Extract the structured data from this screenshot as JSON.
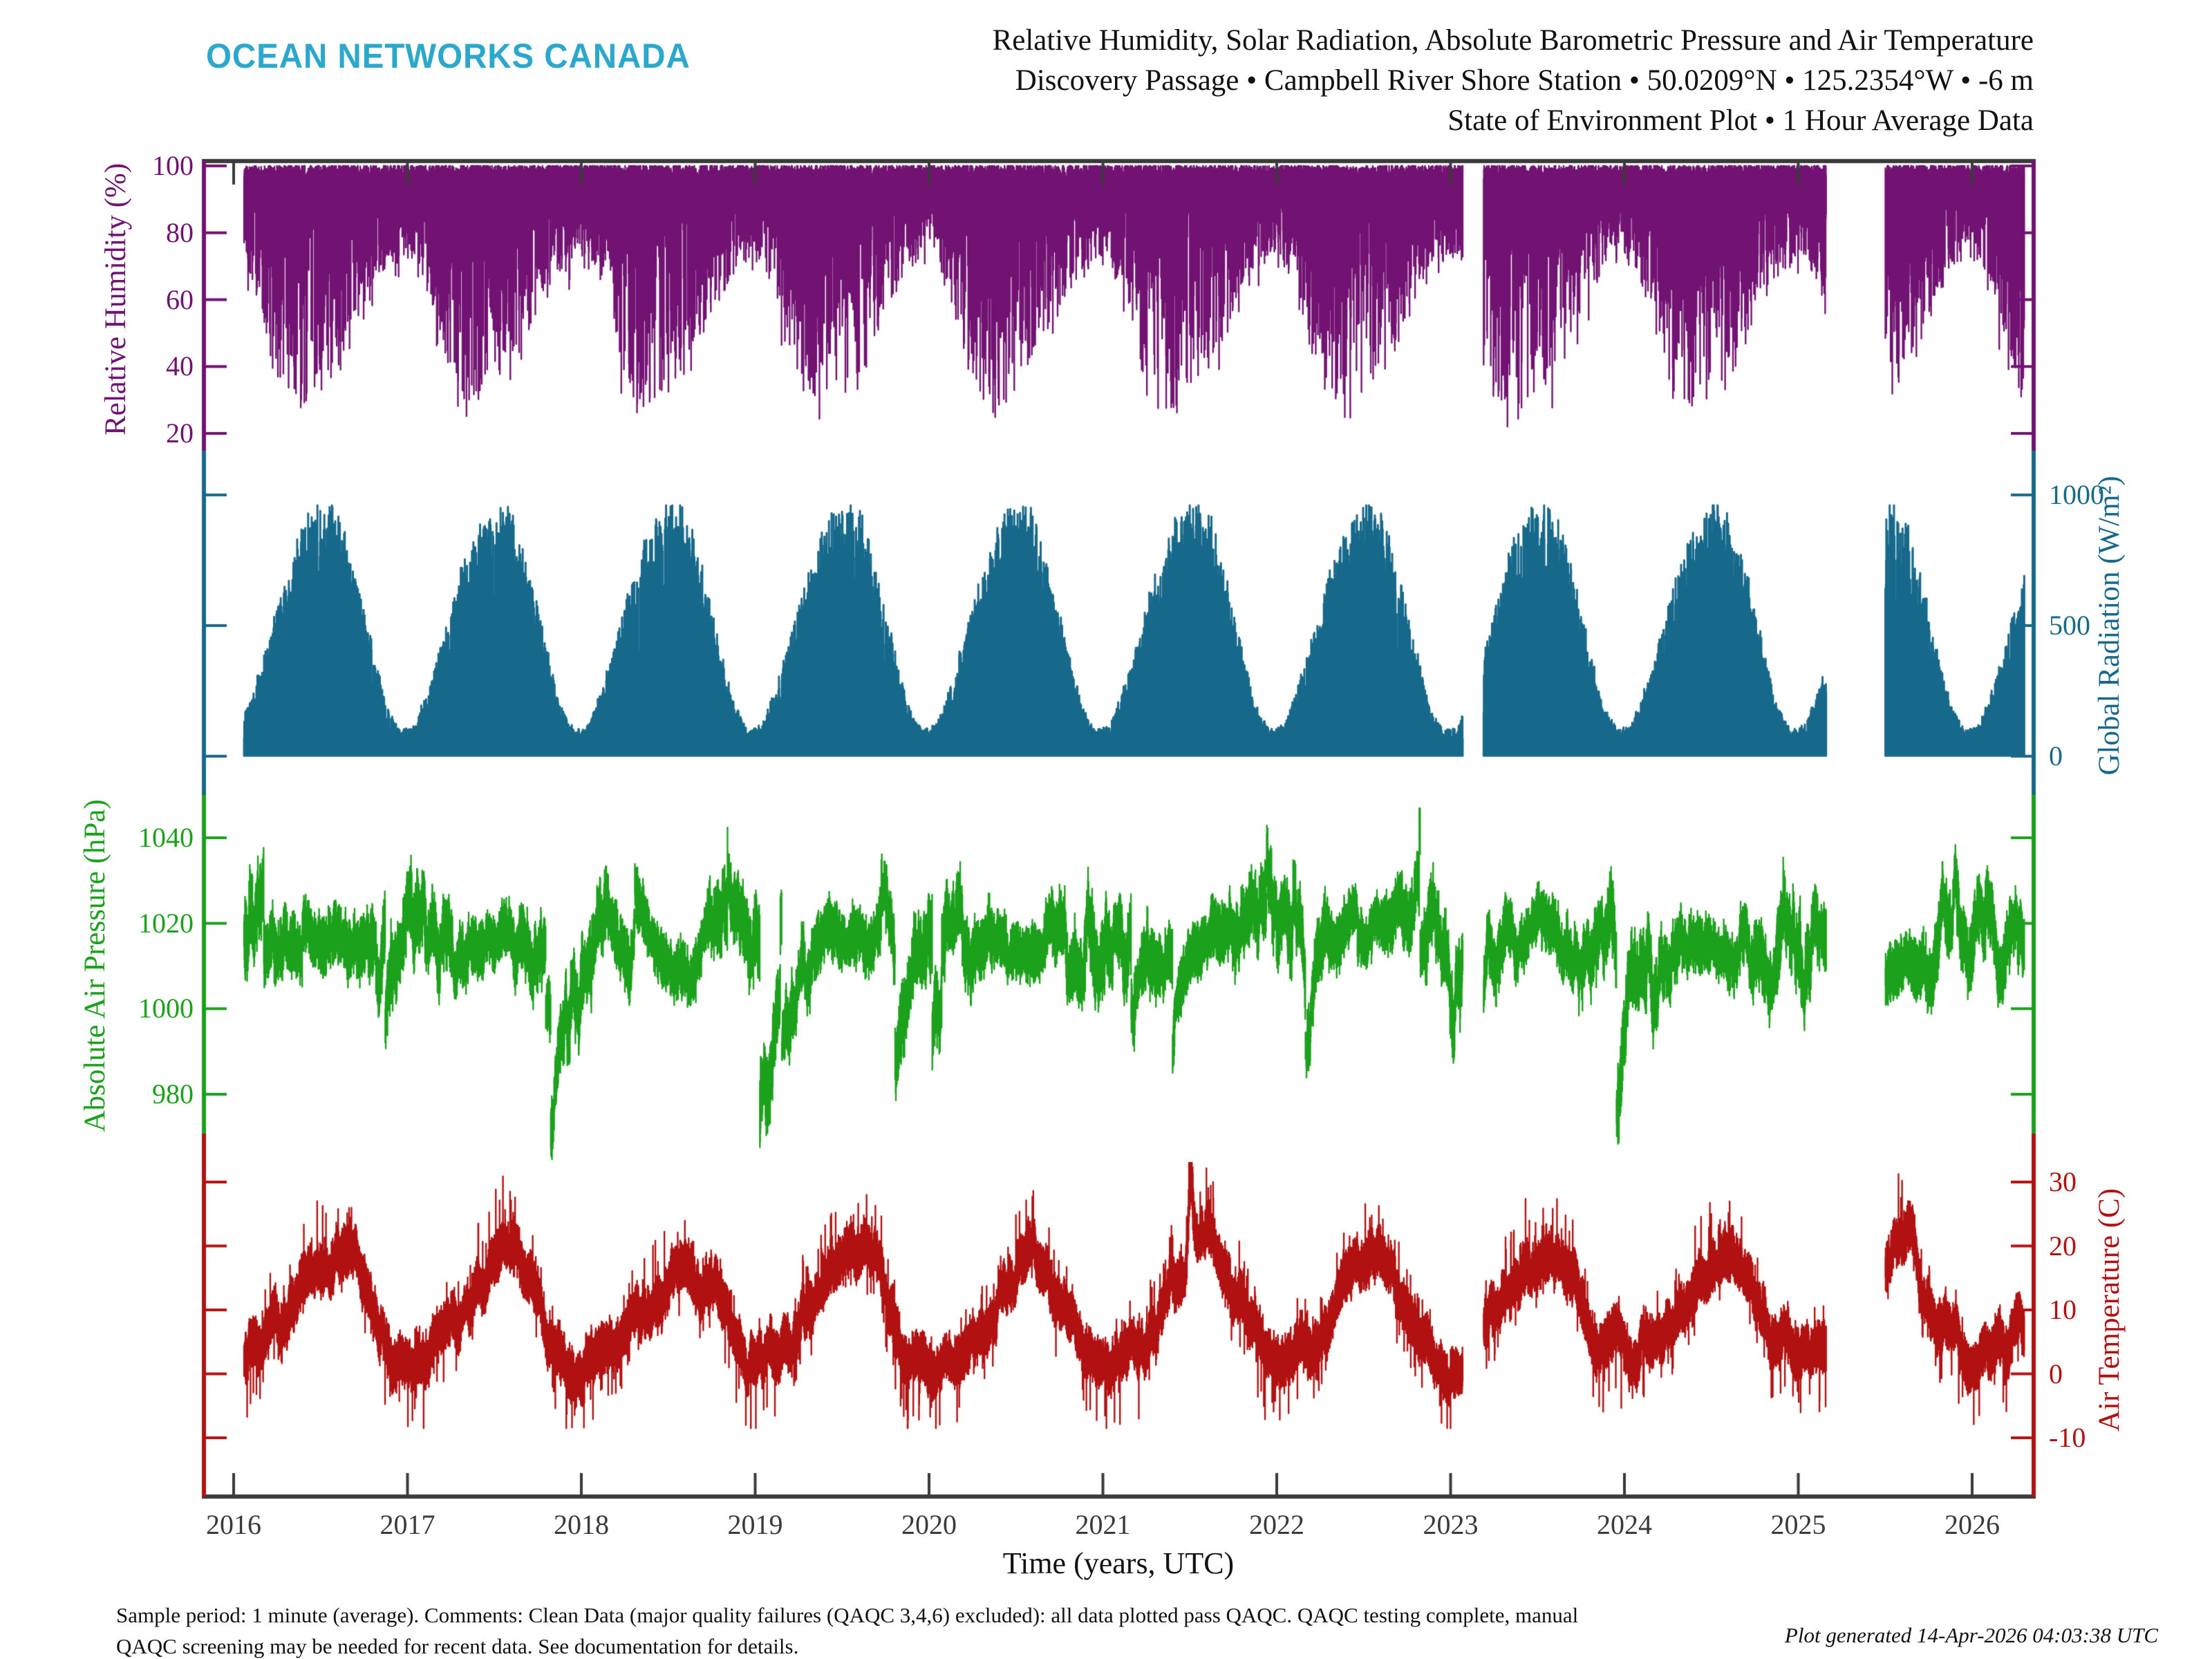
{
  "header": {
    "logo": "OCEAN NETWORKS CANADA",
    "title_lines": [
      "Relative Humidity, Solar Radiation, Absolute Barometric Pressure and Air Temperature",
      "Discovery Passage • Campbell River Shore Station • 50.0209°N • 125.2354°W • -6 m",
      "State of Environment Plot • 1 Hour Average Data"
    ]
  },
  "footer": {
    "line1": "Sample period: 1 minute (average). Comments: Clean Data (major quality failures (QAQC 3,4,6) excluded): all data plotted pass QAQC. QAQC testing complete, manual",
    "line2": "QAQC screening may be needed for recent data. See documentation for details.",
    "generated": "Plot generated 14-Apr-2026 04:03:38 UTC"
  },
  "colors": {
    "logo": "#2BA8CC",
    "frame": "#3A3A3A",
    "text": "#121212",
    "humidity": "#721272",
    "radiation": "#17698C",
    "pressure": "#1CA11C",
    "temperature": "#B21111"
  },
  "chart_data": {
    "type": "line",
    "xlabel": "Time (years, UTC)",
    "x_ticks": [
      2016,
      2017,
      2018,
      2019,
      2020,
      2021,
      2022,
      2023,
      2024,
      2025,
      2026
    ],
    "x_range": [
      2015.82,
      2026.35
    ],
    "time_series_start": 2016.06,
    "time_series_end": 2026.3,
    "sampling_note": "1 hour average data rendered as dense vertical min-max strokes",
    "data_gaps": [
      [
        2023.07,
        2023.19
      ],
      [
        2025.16,
        2025.5
      ]
    ],
    "grid": false,
    "legend": "none",
    "panels": [
      {
        "name": "relative_humidity",
        "ylabel": "Relative Humidity (%)",
        "units": "%",
        "side": "left",
        "ticks": [
          100,
          80,
          60,
          40,
          20
        ],
        "ylim": [
          14,
          101
        ],
        "typical_high": 100,
        "observed_range": [
          20,
          100
        ],
        "monthly_low_envelope": [
          58,
          50,
          36,
          25,
          22,
          26,
          30,
          33,
          40,
          50,
          56,
          58
        ],
        "description": "Near-saturated (90-100%) baseline year-round with downward excursions; deepest drying events to 20-35% each spring/early summer"
      },
      {
        "name": "global_radiation",
        "ylabel": "Global Radiation (W/m²)",
        "units": "W/m²",
        "side": "right",
        "ticks": [
          1000,
          500,
          0
        ],
        "ylim": [
          -20,
          1160
        ],
        "observed_max": 960,
        "monthly_clear_sky_max": [
          115,
          260,
          450,
          640,
          800,
          900,
          935,
          850,
          650,
          420,
          195,
          95
        ],
        "description": "Solid fill from 0 to daily maxima; smooth seasonal bell each year peaking ~900-960 W/m² in mid-summer, ~100 W/m² mid-winter"
      },
      {
        "name": "absolute_air_pressure",
        "ylabel": "Absolute Air Pressure (hPa)",
        "units": "hPa",
        "side": "left",
        "ticks": [
          1040,
          1020,
          1000,
          980
        ],
        "ylim": [
          960,
          1050
        ],
        "mean": 1016,
        "observed_range": [
          965,
          1042
        ],
        "description": "Noisy band centred near 1014-1018 hPa; larger winter variance with storm lows below 980 hPa and highs to ~1042 hPa"
      },
      {
        "name": "air_temperature",
        "ylabel": "Air Temperature (C)",
        "units": "C",
        "side": "right",
        "ticks": [
          30,
          20,
          10,
          0,
          -10
        ],
        "ylim": [
          -19,
          33
        ],
        "monthly_mean": [
          2,
          3.5,
          5.5,
          8.5,
          12,
          15,
          18.5,
          18.5,
          15,
          10.5,
          5.5,
          2.5
        ],
        "observed_range": [
          -8,
          33
        ],
        "notable_event": "Highest spike ~33 C in mid-2021 heat event",
        "description": "Annual sinusoid between ~0 C winter and ~20 C summer with short spikes to 25-33 C and winter dips to -8 C"
      }
    ]
  }
}
